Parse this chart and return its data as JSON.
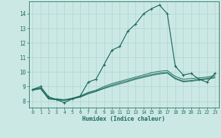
{
  "title": "",
  "xlabel": "Humidex (Indice chaleur)",
  "xlim": [
    -0.5,
    23.5
  ],
  "ylim": [
    7.55,
    14.85
  ],
  "xticks": [
    0,
    1,
    2,
    3,
    4,
    5,
    6,
    7,
    8,
    9,
    10,
    11,
    12,
    13,
    14,
    15,
    16,
    17,
    18,
    19,
    20,
    21,
    22,
    23
  ],
  "yticks": [
    8,
    9,
    10,
    11,
    12,
    13,
    14
  ],
  "background_color": "#cce8e4",
  "line_color": "#1a6b5a",
  "grid_color": "#aad4cc",
  "line1_x": [
    0,
    1,
    2,
    3,
    4,
    5,
    6,
    7,
    8,
    9,
    10,
    11,
    12,
    13,
    14,
    15,
    16,
    17,
    18,
    19,
    20,
    21,
    22,
    23
  ],
  "line1_y": [
    8.8,
    9.0,
    8.3,
    8.1,
    7.9,
    8.15,
    8.35,
    9.3,
    9.5,
    10.5,
    11.5,
    11.75,
    12.8,
    13.3,
    14.0,
    14.35,
    14.6,
    14.0,
    10.4,
    9.8,
    9.9,
    9.5,
    9.3,
    9.9
  ],
  "line2_x": [
    0,
    1,
    2,
    3,
    4,
    5,
    6,
    7,
    8,
    9,
    10,
    11,
    12,
    13,
    14,
    15,
    16,
    17,
    18,
    19,
    20,
    21,
    22,
    23
  ],
  "line2_y": [
    8.8,
    8.9,
    8.2,
    8.15,
    8.1,
    8.2,
    8.35,
    8.6,
    8.75,
    9.0,
    9.2,
    9.35,
    9.5,
    9.65,
    9.8,
    9.95,
    10.05,
    10.1,
    9.7,
    9.5,
    9.55,
    9.6,
    9.65,
    9.75
  ],
  "line3_x": [
    0,
    1,
    2,
    3,
    4,
    5,
    6,
    7,
    8,
    9,
    10,
    11,
    12,
    13,
    14,
    15,
    16,
    17,
    18,
    19,
    20,
    21,
    22,
    23
  ],
  "line3_y": [
    8.78,
    8.87,
    8.17,
    8.12,
    8.07,
    8.17,
    8.31,
    8.54,
    8.7,
    8.91,
    9.1,
    9.26,
    9.4,
    9.56,
    9.7,
    9.83,
    9.93,
    9.98,
    9.58,
    9.38,
    9.42,
    9.5,
    9.56,
    9.66
  ],
  "line4_x": [
    0,
    1,
    2,
    3,
    4,
    5,
    6,
    7,
    8,
    9,
    10,
    11,
    12,
    13,
    14,
    15,
    16,
    17,
    18,
    19,
    20,
    21,
    22,
    23
  ],
  "line4_y": [
    8.75,
    8.84,
    8.14,
    8.09,
    8.04,
    8.14,
    8.27,
    8.49,
    8.66,
    8.86,
    9.03,
    9.18,
    9.33,
    9.5,
    9.63,
    9.76,
    9.86,
    9.92,
    9.52,
    9.32,
    9.36,
    9.44,
    9.5,
    9.6
  ]
}
